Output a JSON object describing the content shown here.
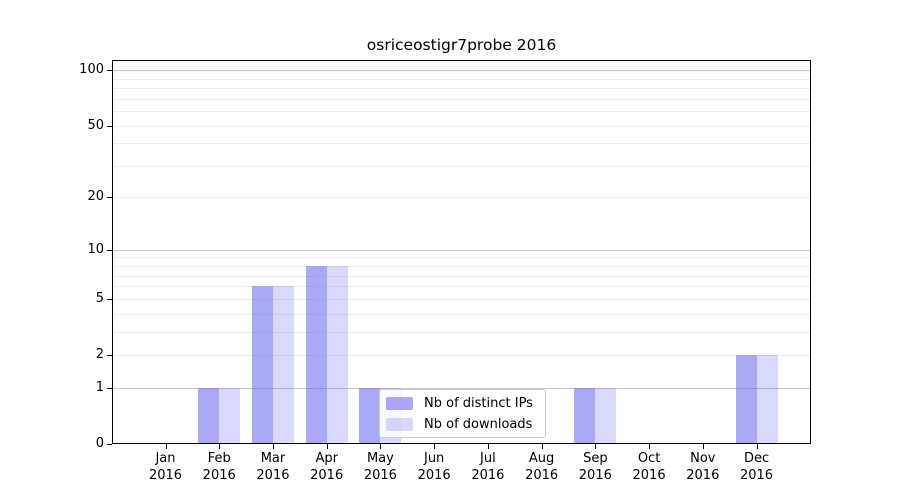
{
  "chart_data": {
    "type": "bar",
    "title": "osriceostigr7probe 2016",
    "categories": [
      "Jan 2016",
      "Feb 2016",
      "Mar 2016",
      "Apr 2016",
      "May 2016",
      "Jun 2016",
      "Jul 2016",
      "Aug 2016",
      "Sep 2016",
      "Oct 2016",
      "Nov 2016",
      "Dec 2016"
    ],
    "x": {
      "months": [
        "Jan",
        "Feb",
        "Mar",
        "Apr",
        "May",
        "Jun",
        "Jul",
        "Aug",
        "Sep",
        "Oct",
        "Nov",
        "Dec"
      ],
      "year": "2016"
    },
    "series": [
      {
        "name": "Nb of distinct IPs",
        "color": "#6666ee",
        "alpha": 0.56,
        "values": [
          0,
          1,
          6,
          8,
          1,
          0,
          0,
          0,
          1,
          0,
          0,
          2
        ]
      },
      {
        "name": "Nb of downloads",
        "color": "#6666ee",
        "alpha": 0.25,
        "values": [
          0,
          1,
          6,
          8,
          1,
          0,
          0,
          0,
          1,
          0,
          0,
          2
        ]
      }
    ],
    "y_axis": {
      "scale": "log1p",
      "ticks": [
        0,
        1,
        2,
        5,
        10,
        20,
        50,
        100
      ],
      "ylim": [
        0,
        113.5
      ],
      "gridlines_major": [
        1,
        10,
        100
      ],
      "gridlines_minor": [
        2,
        3,
        4,
        5,
        6,
        7,
        8,
        9,
        20,
        30,
        40,
        50,
        60,
        70,
        80,
        90
      ]
    },
    "legend": {
      "entries": [
        "Nb of distinct IPs",
        "Nb of downloads"
      ],
      "position": "inside-lower-center-left"
    },
    "grid": "horizontal",
    "xlabel": "",
    "ylabel": ""
  }
}
